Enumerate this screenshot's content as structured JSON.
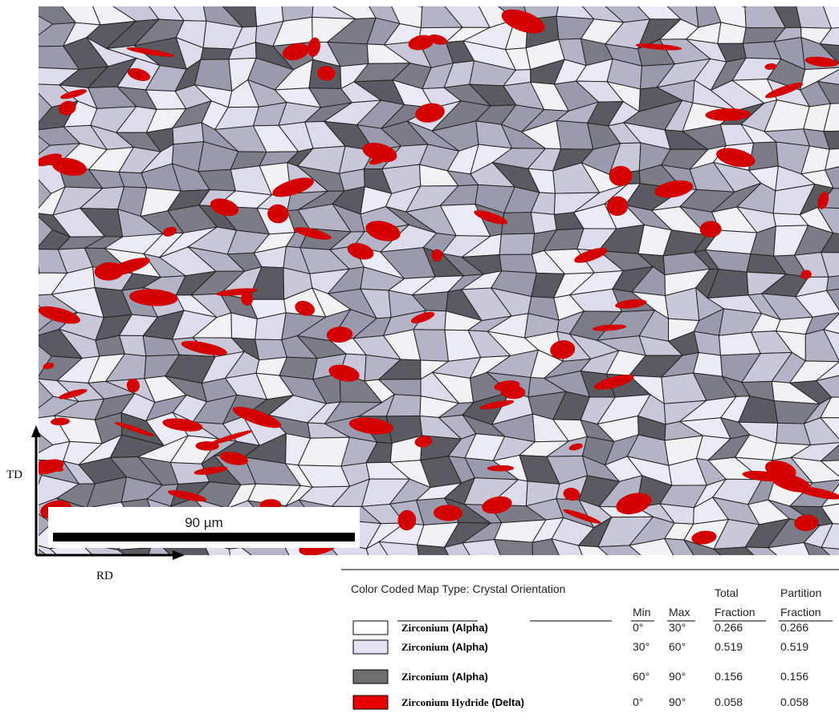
{
  "micrograph": {
    "scale_bar": "90 µm",
    "axes": {
      "vertical": "TD",
      "horizontal": "RD"
    }
  },
  "legend": {
    "title": "Color Coded Map Type: Crystal Orientation",
    "columns": {
      "min": "Min",
      "max": "Max",
      "total": [
        "Total",
        "Fraction"
      ],
      "partition": [
        "Partition",
        "Fraction"
      ]
    },
    "rows": [
      {
        "color": "#ffffff",
        "phase": "Zirconium",
        "variant": "(Alpha)",
        "min": "0°",
        "max": "30°",
        "total_fraction": 0.266,
        "partition_fraction": 0.266
      },
      {
        "color": "#e2e2f4",
        "phase": "Zirconium",
        "variant": "(Alpha)",
        "min": "30°",
        "max": "60°",
        "total_fraction": 0.519,
        "partition_fraction": 0.519
      },
      {
        "color": "#6e6e6e",
        "phase": "Zirconium",
        "variant": "(Alpha)",
        "min": "60°",
        "max": "90°",
        "total_fraction": 0.156,
        "partition_fraction": 0.156
      },
      {
        "color": "#e80000",
        "phase": "Zirconium Hydride",
        "variant": "(Delta)",
        "min": "0°",
        "max": "90°",
        "total_fraction": 0.058,
        "partition_fraction": 0.058
      }
    ]
  }
}
